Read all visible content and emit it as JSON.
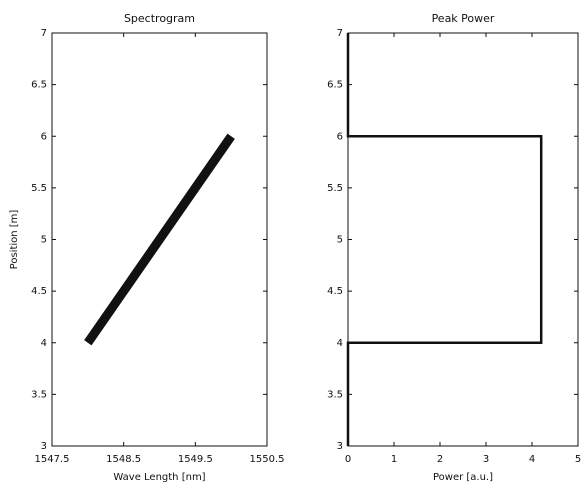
{
  "chart_data": [
    {
      "type": "line",
      "title": "Spectrogram",
      "xlabel": "Wave Length [nm]",
      "ylabel": "Position [m]",
      "x": [
        1548.0,
        1550.0
      ],
      "values": [
        4,
        6
      ],
      "color": "#111111",
      "xlim": [
        1547.5,
        1550.5
      ],
      "xticks": [
        1547.5,
        1548.5,
        1549.5,
        1550.5
      ],
      "ylim": [
        3,
        7
      ],
      "yticks": [
        3,
        3.5,
        4,
        4.5,
        5,
        5.5,
        6,
        6.5,
        7
      ]
    },
    {
      "type": "line",
      "title": "Peak Power",
      "xlabel": "Power [a.u.]",
      "x": [
        0,
        0,
        4.2,
        4.2,
        0,
        0
      ],
      "values": [
        3,
        4,
        4,
        6,
        6,
        7
      ],
      "color": "#111111",
      "xlim": [
        0,
        5
      ],
      "xticks": [
        0,
        1,
        2,
        3,
        4,
        5
      ],
      "ylim": [
        3,
        7
      ],
      "yticks": [
        3,
        3.5,
        4,
        4.5,
        5,
        5.5,
        6,
        6.5,
        7
      ]
    }
  ]
}
